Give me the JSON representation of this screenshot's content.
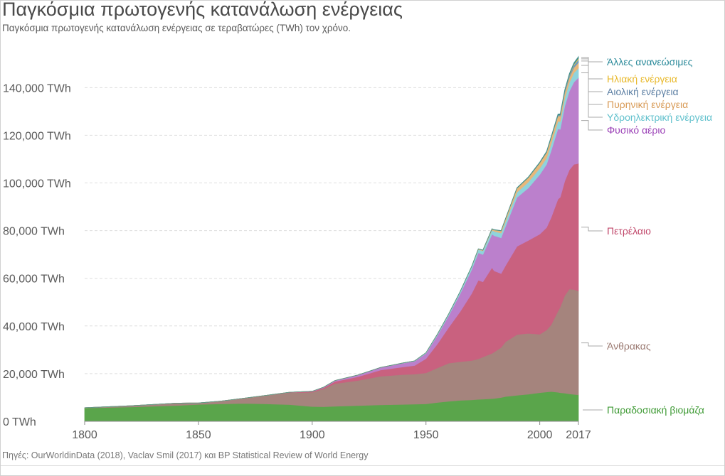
{
  "title": "Παγκόσμια πρωτογενής κατανάλωση ενέργειας",
  "subtitle": "Παγκόσμια πρωτογενής κατανάλωση ενέργειας σε τεραβατώρες (TWh) τον χρόνο.",
  "source": "Πηγές: OurWorldinData (2018), Vaclav Smil (2017) και BP Statistical Review of World Energy",
  "chart_data": {
    "type": "area",
    "stacked": true,
    "title": "Παγκόσμια πρωτογενής κατανάλωση ενέργειας",
    "xlim": [
      1800,
      2017
    ],
    "ylim": [
      0,
      155000
    ],
    "x_ticks": [
      1800,
      1850,
      1900,
      1950,
      2000,
      2017
    ],
    "x_tick_labels": [
      "1800",
      "1850",
      "1900",
      "1950",
      "2000",
      "2017"
    ],
    "y_ticks": [
      0,
      20000,
      40000,
      60000,
      80000,
      100000,
      120000,
      140000
    ],
    "y_tick_labels": [
      "0 TWh",
      "20,000 TWh",
      "40,000 TWh",
      "60,000 TWh",
      "80,000 TWh",
      "100,000 TWh",
      "120,000 TWh",
      "140,000 TWh"
    ],
    "grid": true,
    "legend_position": "right, labels aligned to series ends",
    "x": [
      1800,
      1820,
      1840,
      1850,
      1860,
      1870,
      1880,
      1890,
      1900,
      1905,
      1910,
      1920,
      1930,
      1940,
      1945,
      1950,
      1955,
      1960,
      1965,
      1970,
      1973,
      1975,
      1979,
      1980,
      1983,
      1985,
      1990,
      1995,
      2000,
      2003,
      2005,
      2008,
      2009,
      2011,
      2013,
      2015,
      2017
    ],
    "series": [
      {
        "name": "Παραδοσιακή βιομάζα",
        "color": "#5aa54b",
        "values": [
          5600,
          6000,
          6600,
          7100,
          7300,
          7500,
          7300,
          7000,
          6200,
          6100,
          6300,
          6600,
          6900,
          7100,
          7200,
          7300,
          7900,
          8400,
          8800,
          9000,
          9200,
          9300,
          9500,
          9600,
          10000,
          10400,
          10900,
          11400,
          12000,
          12300,
          12500,
          12200,
          12000,
          11800,
          11500,
          11300,
          11100
        ]
      },
      {
        "name": "Άνθρακας",
        "color": "#a5847d",
        "values": [
          100,
          500,
          1000,
          600,
          1200,
          2200,
          3600,
          5000,
          6000,
          7500,
          9500,
          10500,
          12000,
          12500,
          12600,
          13000,
          14500,
          16000,
          16200,
          16500,
          17000,
          17700,
          19000,
          19500,
          21000,
          23000,
          25500,
          25500,
          24500,
          26000,
          28000,
          34000,
          36000,
          41000,
          44000,
          44000,
          43600
        ]
      },
      {
        "name": "Πετρέλαιο",
        "color": "#c9617f",
        "values": [
          0,
          0,
          0,
          0,
          0,
          0,
          0,
          200,
          300,
          500,
          900,
          1600,
          2600,
          3200,
          3600,
          6000,
          10000,
          15000,
          21000,
          28000,
          33000,
          31500,
          36000,
          34000,
          31000,
          32000,
          37000,
          39000,
          42000,
          43000,
          45000,
          47000,
          46000,
          48000,
          50000,
          52500,
          53500
        ]
      },
      {
        "name": "Φυσικό αέριο",
        "color": "#bb80cc",
        "values": [
          0,
          0,
          0,
          0,
          0,
          0,
          0,
          0,
          100,
          200,
          400,
          700,
          1100,
          1600,
          1800,
          2200,
          3600,
          5000,
          7500,
          10000,
          11500,
          11500,
          14000,
          14800,
          15000,
          16500,
          20500,
          22000,
          25000,
          26500,
          28000,
          29500,
          28500,
          31500,
          33000,
          34500,
          36000
        ]
      },
      {
        "name": "Υδροηλεκτρική ενέργεια",
        "color": "#8fd3dc",
        "values": [
          0,
          0,
          0,
          0,
          0,
          0,
          0,
          0,
          0,
          0,
          0,
          0,
          0,
          100,
          150,
          300,
          500,
          700,
          900,
          1200,
          1400,
          1500,
          1700,
          1800,
          2000,
          2100,
          2200,
          2500,
          2700,
          2700,
          2900,
          3100,
          3300,
          3400,
          3600,
          3900,
          4000
        ]
      },
      {
        "name": "Πυρηνική ενέργεια",
        "color": "#e8b77a",
        "values": [
          0,
          0,
          0,
          0,
          0,
          0,
          0,
          0,
          0,
          0,
          0,
          0,
          0,
          0,
          0,
          0,
          0,
          0,
          0,
          100,
          200,
          300,
          500,
          600,
          900,
          1100,
          1700,
          1900,
          2200,
          2300,
          2400,
          2300,
          2300,
          2200,
          2100,
          2200,
          2300
        ]
      },
      {
        "name": "Αιολική ενέργεια",
        "color": "#6f9bc0",
        "values": [
          0,
          0,
          0,
          0,
          0,
          0,
          0,
          0,
          0,
          0,
          0,
          0,
          0,
          0,
          0,
          0,
          0,
          0,
          0,
          0,
          0,
          0,
          0,
          0,
          0,
          0,
          0,
          0,
          50,
          100,
          200,
          350,
          450,
          650,
          900,
          1100,
          1300
        ]
      },
      {
        "name": "Ηλιακή ενέργεια",
        "color": "#f2c94c",
        "values": [
          0,
          0,
          0,
          0,
          0,
          0,
          0,
          0,
          0,
          0,
          0,
          0,
          0,
          0,
          0,
          0,
          0,
          0,
          0,
          0,
          0,
          0,
          0,
          0,
          0,
          0,
          0,
          0,
          0,
          0,
          0,
          0,
          0,
          100,
          200,
          300,
          500
        ]
      },
      {
        "name": "Άλλες ανανεώσιμες",
        "color": "#3f8e8e",
        "values": [
          0,
          0,
          0,
          0,
          0,
          0,
          0,
          0,
          0,
          0,
          0,
          0,
          0,
          0,
          0,
          0,
          0,
          0,
          50,
          60,
          70,
          80,
          100,
          110,
          130,
          150,
          200,
          250,
          300,
          350,
          400,
          450,
          480,
          520,
          560,
          600,
          700
        ]
      }
    ],
    "legend": [
      {
        "label": "Άλλες ανανεώσιμες",
        "color": "#2b8a9a"
      },
      {
        "label": "Ηλιακή ενέργεια",
        "color": "#e8b82a"
      },
      {
        "label": "Αιολική ενέργεια",
        "color": "#5c7fa3"
      },
      {
        "label": "Πυρηνική ενέργεια",
        "color": "#d89a55"
      },
      {
        "label": "Υδροηλεκτρική ενέργεια",
        "color": "#5fc0cc"
      },
      {
        "label": "Φυσικό αέριο",
        "color": "#9a3fb6"
      },
      {
        "label": "Πετρέλαιο",
        "color": "#c0476a"
      },
      {
        "label": "Άνθρακας",
        "color": "#9b7a72"
      },
      {
        "label": "Παραδοσιακή βιομάζα",
        "color": "#3e9a34"
      }
    ]
  }
}
